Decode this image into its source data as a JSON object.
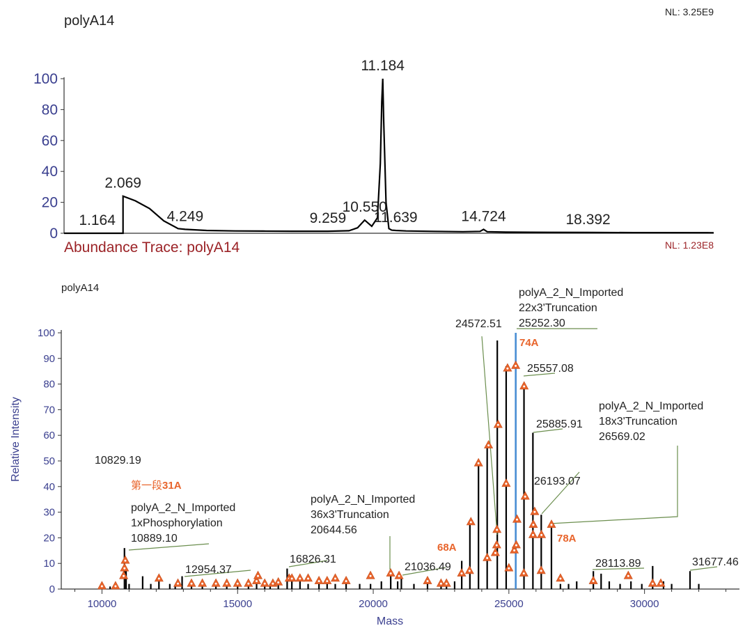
{
  "chart_data": [
    {
      "type": "line",
      "title": "polyA14",
      "nl": "NL: 3.25E9",
      "subtitle": "Abundance Trace: polyA14",
      "subtitle_nl": "NL: 1.23E8",
      "xlim": [
        0,
        22.8
      ],
      "ylim": [
        0,
        100
      ],
      "yticks": [
        0,
        20,
        40,
        60,
        80,
        100
      ],
      "grid": false,
      "x": [
        0,
        1.164,
        2.0,
        2.069,
        2.069,
        2.5,
        3.0,
        3.5,
        4.0,
        4.249,
        5.0,
        6.0,
        7.0,
        8.0,
        9.0,
        9.259,
        10.0,
        10.3,
        10.55,
        10.8,
        11.0,
        11.1,
        11.15,
        11.184,
        11.22,
        11.3,
        11.4,
        11.5,
        11.639,
        12.0,
        13.0,
        14.0,
        14.6,
        14.724,
        14.85,
        15.5,
        17.0,
        18.392,
        20.0,
        22.8
      ],
      "y": [
        0,
        0,
        0,
        0,
        24,
        21,
        16,
        8,
        3,
        2.5,
        1.8,
        1.5,
        1.4,
        1.3,
        1.3,
        1.3,
        1.6,
        3.5,
        8.5,
        4.5,
        10,
        45,
        85,
        100,
        72,
        20,
        3,
        2,
        1.8,
        1.5,
        1.2,
        1.0,
        1.2,
        2.5,
        1.0,
        0.7,
        0.6,
        0.5,
        0.4,
        0.3
      ],
      "peak_labels": [
        {
          "x": 1.164,
          "y": 0,
          "text": "1.164"
        },
        {
          "x": 2.069,
          "y": 24,
          "text": "2.069"
        },
        {
          "x": 4.249,
          "y": 2.5,
          "text": "4.249"
        },
        {
          "x": 9.259,
          "y": 1.3,
          "text": "9.259"
        },
        {
          "x": 10.55,
          "y": 8.5,
          "text": "10.550"
        },
        {
          "x": 11.184,
          "y": 100,
          "text": "11.184"
        },
        {
          "x": 11.639,
          "y": 1.8,
          "text": "11.639"
        },
        {
          "x": 14.724,
          "y": 2.5,
          "text": "14.724"
        },
        {
          "x": 18.392,
          "y": 0.5,
          "text": "18.392"
        }
      ]
    },
    {
      "type": "bar",
      "title": "polyA14",
      "xlabel": "Mass",
      "ylabel": "Relative Intensity",
      "xlim": [
        8500,
        33500
      ],
      "ylim": [
        0,
        100
      ],
      "xticks": [
        10000,
        15000,
        20000,
        25000,
        30000
      ],
      "yticks": [
        0,
        10,
        20,
        30,
        40,
        50,
        60,
        70,
        80,
        90,
        100
      ],
      "grid": false,
      "sticks": [
        [
          10000,
          1
        ],
        [
          10300,
          1
        ],
        [
          10500,
          1.5
        ],
        [
          10829.19,
          16
        ],
        [
          10889.1,
          8
        ],
        [
          11000,
          2
        ],
        [
          11500,
          5
        ],
        [
          11800,
          2
        ],
        [
          12100,
          4
        ],
        [
          12500,
          2
        ],
        [
          12700,
          1.5
        ],
        [
          12954.37,
          5
        ],
        [
          13300,
          2
        ],
        [
          13700,
          1.5
        ],
        [
          14200,
          1.5
        ],
        [
          14600,
          2
        ],
        [
          15000,
          3
        ],
        [
          15400,
          2
        ],
        [
          15700,
          5
        ],
        [
          16000,
          2
        ],
        [
          16200,
          2
        ],
        [
          16500,
          3
        ],
        [
          16826.31,
          8
        ],
        [
          17000,
          4
        ],
        [
          17300,
          4
        ],
        [
          17600,
          2
        ],
        [
          18000,
          2
        ],
        [
          18300,
          3
        ],
        [
          18600,
          2
        ],
        [
          19000,
          2.5
        ],
        [
          19500,
          2
        ],
        [
          19900,
          2
        ],
        [
          20300,
          3
        ],
        [
          20644.56,
          7
        ],
        [
          20900,
          3
        ],
        [
          21036.49,
          4
        ],
        [
          21500,
          2
        ],
        [
          22000,
          3
        ],
        [
          22500,
          2
        ],
        [
          22700,
          2
        ],
        [
          23000,
          3
        ],
        [
          23262,
          11
        ],
        [
          23563,
          26
        ],
        [
          23880,
          50
        ],
        [
          24200,
          56
        ],
        [
          24572.51,
          97
        ],
        [
          24900,
          87
        ],
        [
          25252.3,
          100
        ],
        [
          25557.08,
          80
        ],
        [
          25885.91,
          61
        ],
        [
          26193.07,
          29
        ],
        [
          26569.02,
          25
        ],
        [
          26900,
          2
        ],
        [
          27200,
          2
        ],
        [
          27500,
          3
        ],
        [
          28113.89,
          7
        ],
        [
          28400,
          6
        ],
        [
          28700,
          3
        ],
        [
          29100,
          2
        ],
        [
          29500,
          3
        ],
        [
          29900,
          2
        ],
        [
          30300,
          9
        ],
        [
          30700,
          3
        ],
        [
          31000,
          2
        ],
        [
          31677.46,
          7
        ],
        [
          32000,
          2
        ]
      ],
      "highlight": {
        "x": 25252.3,
        "y": 100
      },
      "markers": [
        [
          10000,
          0
        ],
        [
          10500,
          0
        ],
        [
          10800,
          4
        ],
        [
          10830,
          7
        ],
        [
          10860,
          10
        ],
        [
          12100,
          3
        ],
        [
          12800,
          1
        ],
        [
          13300,
          1
        ],
        [
          13700,
          1
        ],
        [
          14200,
          1
        ],
        [
          14600,
          1
        ],
        [
          15000,
          1
        ],
        [
          15400,
          1
        ],
        [
          15700,
          2
        ],
        [
          15750,
          4
        ],
        [
          16000,
          1
        ],
        [
          16300,
          1
        ],
        [
          16500,
          1.5
        ],
        [
          16900,
          3
        ],
        [
          17000,
          3
        ],
        [
          17300,
          3
        ],
        [
          17600,
          3
        ],
        [
          18000,
          2
        ],
        [
          18300,
          2
        ],
        [
          18600,
          3
        ],
        [
          19000,
          2
        ],
        [
          19900,
          4
        ],
        [
          20644,
          5
        ],
        [
          20950,
          4
        ],
        [
          22000,
          2
        ],
        [
          22500,
          1
        ],
        [
          22700,
          1
        ],
        [
          23260,
          5
        ],
        [
          23550,
          6
        ],
        [
          23600,
          25
        ],
        [
          23880,
          48
        ],
        [
          24200,
          11
        ],
        [
          24250,
          55
        ],
        [
          24500,
          13
        ],
        [
          24550,
          16
        ],
        [
          24560,
          22
        ],
        [
          24600,
          63
        ],
        [
          24900,
          40
        ],
        [
          24950,
          85
        ],
        [
          25000,
          7
        ],
        [
          25200,
          14
        ],
        [
          25250,
          86
        ],
        [
          25270,
          16
        ],
        [
          25300,
          26
        ],
        [
          25550,
          5
        ],
        [
          25560,
          78
        ],
        [
          25600,
          35
        ],
        [
          25890,
          20
        ],
        [
          25900,
          24
        ],
        [
          25950,
          29
        ],
        [
          26190,
          6
        ],
        [
          26200,
          20
        ],
        [
          26569,
          24
        ],
        [
          26900,
          3
        ],
        [
          28113,
          2
        ],
        [
          29400,
          4
        ],
        [
          30300,
          1
        ],
        [
          30600,
          1
        ]
      ],
      "annotations": [
        {
          "x": 10829.19,
          "y": 16,
          "lines": [
            "10829.19"
          ]
        },
        {
          "x": 10889.1,
          "y": 8,
          "lines": [
            "polyA_2_N_Imported",
            "1xPhosphorylation",
            "10889.10"
          ],
          "tag_prefix": "第一段",
          "tag": "31A"
        },
        {
          "x": 12954.37,
          "y": 5,
          "lines": [
            "12954.37"
          ]
        },
        {
          "x": 16826.31,
          "y": 8,
          "lines": [
            "16826.31"
          ]
        },
        {
          "x": 20644.56,
          "y": 7,
          "lines": [
            "polyA_2_N_Imported",
            "36x3'Truncation",
            "20644.56"
          ]
        },
        {
          "x": 21036.49,
          "y": 4,
          "lines": [
            "21036.49"
          ]
        },
        {
          "x": 24572.51,
          "y": 97,
          "lines": [
            "24572.51"
          ]
        },
        {
          "x": 25252.3,
          "y": 100,
          "lines": [
            "polyA_2_N_Imported",
            "22x3'Truncation",
            "25252.30"
          ],
          "tag": "74A"
        },
        {
          "x": 25557.08,
          "y": 80,
          "lines": [
            "25557.08"
          ]
        },
        {
          "x": 25885.91,
          "y": 61,
          "lines": [
            "25885.91"
          ]
        },
        {
          "x": 26193.07,
          "y": 29,
          "lines": [
            "26193.07"
          ]
        },
        {
          "x": 26569.02,
          "y": 25,
          "lines": [
            "polyA_2_N_Imported",
            "18x3'Truncation",
            "26569.02"
          ]
        },
        {
          "x": 28113.89,
          "y": 7,
          "lines": [
            "28113.89"
          ]
        },
        {
          "x": 31677.46,
          "y": 7,
          "lines": [
            "31677.46"
          ]
        }
      ],
      "tags_free": [
        {
          "x": 23300,
          "y": 16,
          "text": "68A"
        },
        {
          "x": 26700,
          "y": 17,
          "text": "78A"
        }
      ]
    }
  ],
  "colors": {
    "trace": "#000000",
    "axis": "#3a3f8f",
    "highlight": "#4a8fd6",
    "marker": "#e8642b",
    "leader": "#6b8e4e",
    "subtitle": "#9b2226"
  }
}
